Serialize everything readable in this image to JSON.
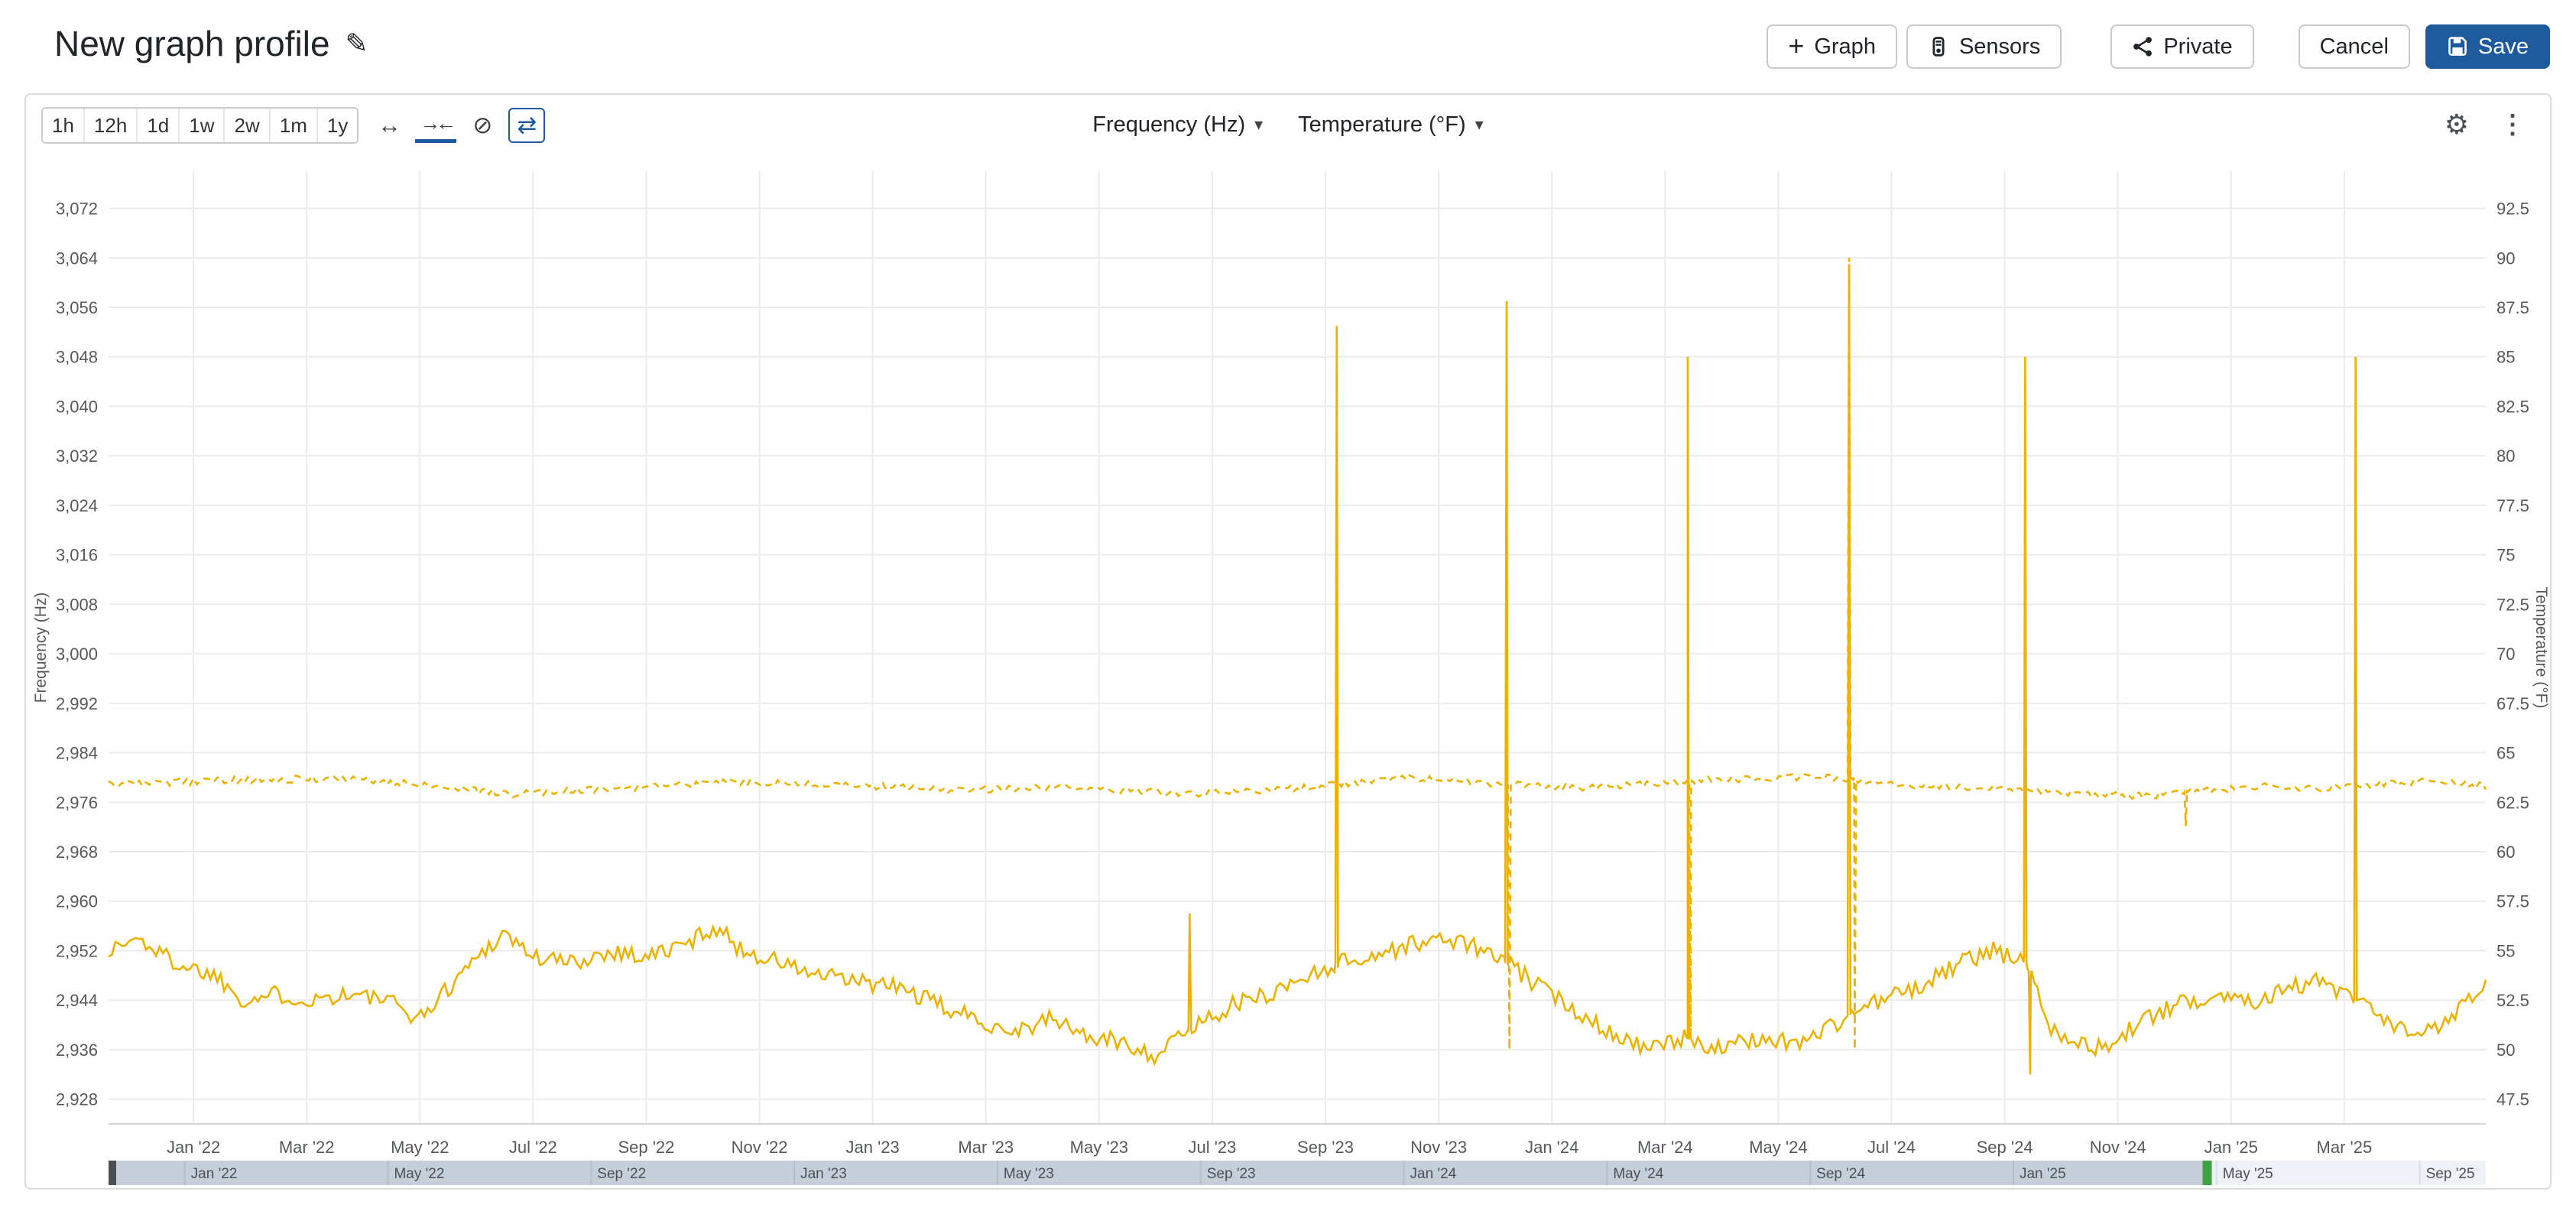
{
  "header": {
    "title": "New graph profile",
    "buttons": {
      "graph": "Graph",
      "sensors": "Sensors",
      "private": "Private",
      "cancel": "Cancel",
      "save": "Save"
    }
  },
  "icons": {
    "edit": "✎",
    "plus": "+",
    "caret": "▾",
    "gear": "⚙",
    "kebab": "⋮",
    "arrows_h": "↔",
    "compress": "→←",
    "clock_off": "⊘",
    "loop": "⇄"
  },
  "colors": {
    "accent": "#1d5a9e",
    "series_gold": "#edb100",
    "navigator_selected": "#c5ced9",
    "navigator_unselected": "#eef1f5",
    "navigator_handle_left": "#4a4f55",
    "navigator_handle_right": "#3fa142"
  },
  "toolbar": {
    "ranges": [
      "1h",
      "12h",
      "1d",
      "1w",
      "2w",
      "1m",
      "1y"
    ],
    "selectors": [
      "Frequency (Hz)",
      "Temperature (°F)"
    ]
  },
  "chart_data": {
    "type": "line",
    "title": "",
    "x_unit": "months since mid-Nov 2021",
    "x_domain": [
      0,
      42
    ],
    "x_ticks": [
      {
        "m": 1.5,
        "label": "Jan '22"
      },
      {
        "m": 3.5,
        "label": "Mar '22"
      },
      {
        "m": 5.5,
        "label": "May '22"
      },
      {
        "m": 7.5,
        "label": "Jul '22"
      },
      {
        "m": 9.5,
        "label": "Sep '22"
      },
      {
        "m": 11.5,
        "label": "Nov '22"
      },
      {
        "m": 13.5,
        "label": "Jan '23"
      },
      {
        "m": 15.5,
        "label": "Mar '23"
      },
      {
        "m": 17.5,
        "label": "May '23"
      },
      {
        "m": 19.5,
        "label": "Jul '23"
      },
      {
        "m": 21.5,
        "label": "Sep '23"
      },
      {
        "m": 23.5,
        "label": "Nov '23"
      },
      {
        "m": 25.5,
        "label": "Jan '24"
      },
      {
        "m": 27.5,
        "label": "Mar '24"
      },
      {
        "m": 29.5,
        "label": "May '24"
      },
      {
        "m": 31.5,
        "label": "Jul '24"
      },
      {
        "m": 33.5,
        "label": "Sep '24"
      },
      {
        "m": 35.5,
        "label": "Nov '24"
      },
      {
        "m": 37.5,
        "label": "Jan '25"
      },
      {
        "m": 39.5,
        "label": "Mar '25"
      }
    ],
    "left_axis": {
      "label": "Frequency (Hz)",
      "domain": [
        2924,
        3078
      ],
      "ticks": [
        2928,
        2936,
        2944,
        2952,
        2960,
        2968,
        2976,
        2984,
        2992,
        3000,
        3008,
        3016,
        3024,
        3032,
        3040,
        3048,
        3056,
        3064,
        3072
      ]
    },
    "right_axis": {
      "label": "Temperature (°F)",
      "ticks": [
        47.5,
        50,
        52.5,
        55,
        57.5,
        60,
        62.5,
        65,
        67.5,
        70,
        72.5,
        75,
        77.5,
        80,
        82.5,
        85,
        87.5,
        90,
        92.5
      ],
      "aligned_with_left_ticks": true
    },
    "series": [
      {
        "name": "Frequency (Hz)",
        "axis": "left",
        "style": "solid",
        "color": "#edb100",
        "noise": 1.5,
        "keypoints": [
          [
            0,
            2952
          ],
          [
            0.5,
            2954
          ],
          [
            1.2,
            2950
          ],
          [
            1.9,
            2948
          ],
          [
            2.4,
            2944
          ],
          [
            3,
            2945
          ],
          [
            3.5,
            2944
          ],
          [
            4.2,
            2945
          ],
          [
            4.9,
            2944
          ],
          [
            5.5,
            2941
          ],
          [
            6,
            2946
          ],
          [
            6.5,
            2951
          ],
          [
            7,
            2955
          ],
          [
            7.5,
            2951
          ],
          [
            8.2,
            2950
          ],
          [
            8.9,
            2952
          ],
          [
            9.5,
            2951
          ],
          [
            10.2,
            2953
          ],
          [
            10.7,
            2956
          ],
          [
            11.2,
            2952
          ],
          [
            11.9,
            2950
          ],
          [
            12.5,
            2948
          ],
          [
            13.2,
            2947
          ],
          [
            14,
            2946
          ],
          [
            14.7,
            2943
          ],
          [
            15.3,
            2941
          ],
          [
            16,
            2939
          ],
          [
            16.7,
            2941
          ],
          [
            17.3,
            2938
          ],
          [
            18,
            2937
          ],
          [
            18.5,
            2935
          ],
          [
            19.2,
            2940
          ],
          [
            19.8,
            2943
          ],
          [
            20.5,
            2945
          ],
          [
            21.2,
            2948
          ],
          [
            21.7,
            2950
          ],
          [
            22.3,
            2951
          ],
          [
            23,
            2953
          ],
          [
            23.7,
            2954
          ],
          [
            24.3,
            2952
          ],
          [
            24.7,
            2950
          ],
          [
            25.3,
            2946
          ],
          [
            26,
            2942
          ],
          [
            26.7,
            2938
          ],
          [
            27.3,
            2936
          ],
          [
            27.9,
            2938
          ],
          [
            28.5,
            2936
          ],
          [
            29.2,
            2938
          ],
          [
            29.8,
            2937
          ],
          [
            30.5,
            2940
          ],
          [
            30.8,
            2942
          ],
          [
            31.3,
            2944
          ],
          [
            32,
            2946
          ],
          [
            32.7,
            2950
          ],
          [
            33.3,
            2952
          ],
          [
            33.9,
            2950
          ],
          [
            34.3,
            2940
          ],
          [
            34.8,
            2937
          ],
          [
            35.3,
            2936
          ],
          [
            35.8,
            2940
          ],
          [
            36.5,
            2943
          ],
          [
            37.2,
            2945
          ],
          [
            37.9,
            2944
          ],
          [
            38.5,
            2946
          ],
          [
            39,
            2947
          ],
          [
            39.7,
            2944
          ],
          [
            40.3,
            2940
          ],
          [
            40.8,
            2938
          ],
          [
            41.3,
            2941
          ],
          [
            41.8,
            2945
          ],
          [
            42,
            2947
          ]
        ],
        "events": [
          [
            19.1,
            2958
          ],
          [
            21.7,
            3053
          ],
          [
            24.7,
            3057
          ],
          [
            27.9,
            3048
          ],
          [
            30.75,
            3063
          ],
          [
            33.86,
            3048
          ],
          [
            33.95,
            2932
          ],
          [
            39.7,
            3048
          ]
        ]
      },
      {
        "name": "Temperature (°F)",
        "axis": "right",
        "style": "dashed",
        "color": "#edb100",
        "noise": 0.18,
        "keypoints": [
          [
            0,
            63.4
          ],
          [
            2,
            63.6
          ],
          [
            4,
            63.7
          ],
          [
            6,
            63.3
          ],
          [
            7,
            62.9
          ],
          [
            9,
            63.2
          ],
          [
            11,
            63.5
          ],
          [
            13,
            63.4
          ],
          [
            15,
            63.1
          ],
          [
            17,
            63.3
          ],
          [
            19,
            62.9
          ],
          [
            21,
            63.2
          ],
          [
            23,
            63.7
          ],
          [
            24.7,
            63.4
          ],
          [
            26,
            63.2
          ],
          [
            28,
            63.6
          ],
          [
            30,
            63.8
          ],
          [
            31,
            63.6
          ],
          [
            32,
            63.3
          ],
          [
            33.5,
            63.2
          ],
          [
            35,
            62.9
          ],
          [
            36,
            62.8
          ],
          [
            37,
            63.1
          ],
          [
            38,
            63.3
          ],
          [
            39,
            63.2
          ],
          [
            40,
            63.4
          ],
          [
            41,
            63.6
          ],
          [
            42,
            63.3
          ]
        ],
        "events": [
          [
            24.75,
            50
          ],
          [
            27.95,
            50.5
          ],
          [
            30.75,
            90
          ],
          [
            30.85,
            50
          ],
          [
            36.7,
            61.3
          ]
        ]
      }
    ],
    "grid": true,
    "legend": "none"
  },
  "navigator": {
    "domain": [
      0,
      46.8
    ],
    "selection": [
      0,
      41.3
    ],
    "ticks": [
      {
        "m": 1.5,
        "label": "Jan '22"
      },
      {
        "m": 5.5,
        "label": "May '22"
      },
      {
        "m": 9.5,
        "label": "Sep '22"
      },
      {
        "m": 13.5,
        "label": "Jan '23"
      },
      {
        "m": 17.5,
        "label": "May '23"
      },
      {
        "m": 21.5,
        "label": "Sep '23"
      },
      {
        "m": 25.5,
        "label": "Jan '24"
      },
      {
        "m": 29.5,
        "label": "May '24"
      },
      {
        "m": 33.5,
        "label": "Sep '24"
      },
      {
        "m": 37.5,
        "label": "Jan '25"
      },
      {
        "m": 41.5,
        "label": "May '25"
      },
      {
        "m": 45.5,
        "label": "Sep '25"
      }
    ]
  }
}
